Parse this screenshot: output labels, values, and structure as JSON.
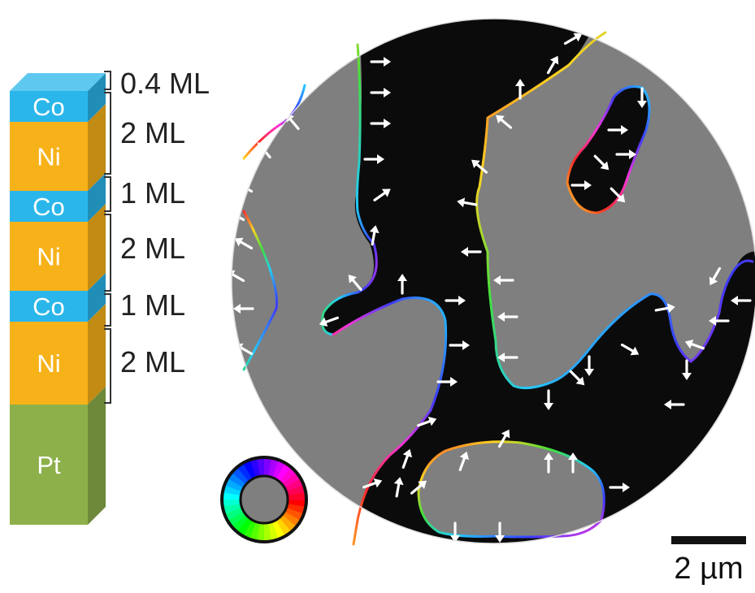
{
  "stack": {
    "colors": {
      "co": "#2ab6ea",
      "ni": "#f7b219",
      "pt": "#8db04a"
    },
    "layers": [
      {
        "material": "Co",
        "thickness": "0.4 ML"
      },
      {
        "material": "Ni",
        "thickness": "2 ML"
      },
      {
        "material": "Co",
        "thickness": "1 ML"
      },
      {
        "material": "Ni",
        "thickness": "2 ML"
      },
      {
        "material": "Co",
        "thickness": "1 ML"
      },
      {
        "material": "Ni",
        "thickness": "2 ML"
      },
      {
        "material": "Pt",
        "thickness": ""
      }
    ]
  },
  "image": {
    "domain_colors": {
      "dark": "#0b0b0b",
      "light": "#7f7f7f"
    },
    "arrow_color": "#ffffff"
  },
  "color_wheel": {
    "icon": "hsv-color-wheel-icon"
  },
  "scale_bar": {
    "label": "2 µm"
  }
}
